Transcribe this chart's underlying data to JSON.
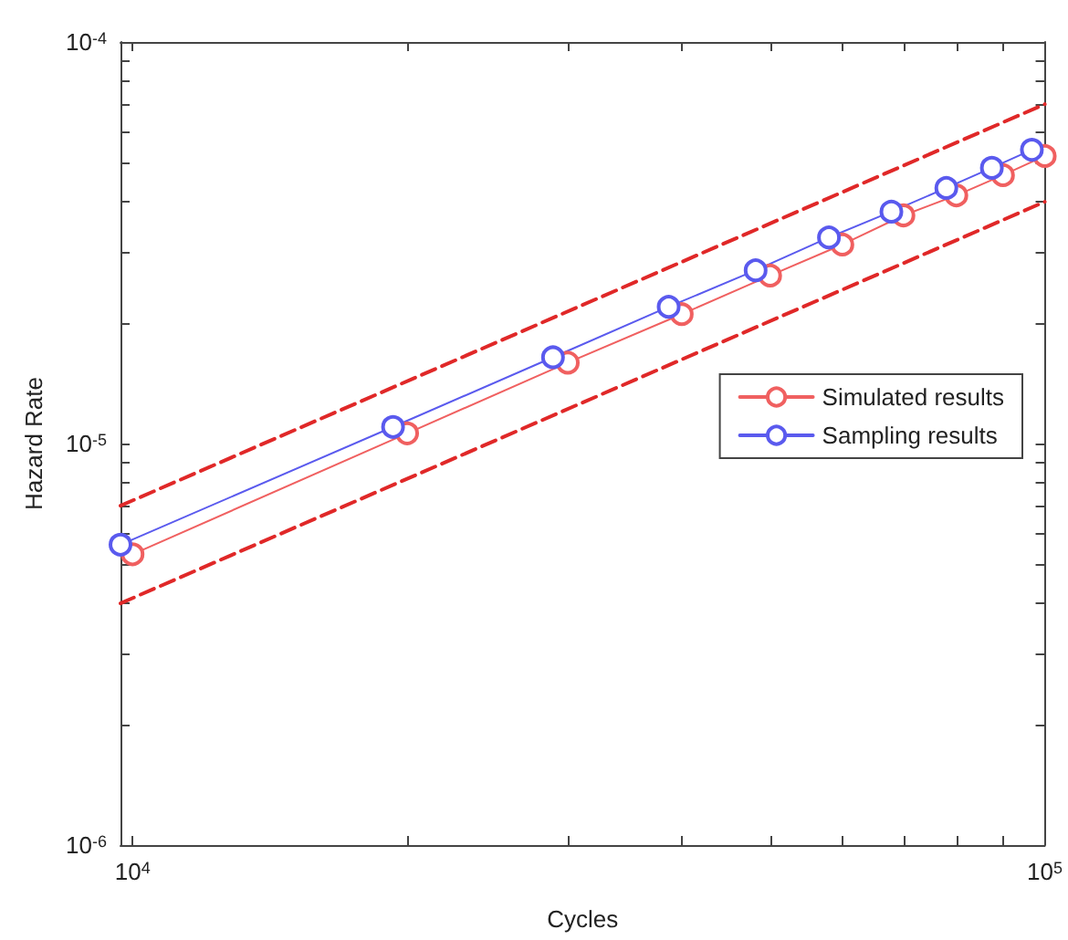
{
  "chart_data": {
    "type": "line",
    "xlabel": "Cycles",
    "ylabel": "Hazard Rate",
    "log": "xy",
    "xlim": [
      9700,
      100000
    ],
    "ylim": [
      1e-06,
      0.0001
    ],
    "xticks": [
      {
        "value": 10000,
        "label": "10$^{4}$"
      },
      {
        "value": 20000,
        "label": null
      },
      {
        "value": 30000,
        "label": null
      },
      {
        "value": 40000,
        "label": null
      },
      {
        "value": 50000,
        "label": null
      },
      {
        "value": 60000,
        "label": null
      },
      {
        "value": 70000,
        "label": null
      },
      {
        "value": 80000,
        "label": null
      },
      {
        "value": 90000,
        "label": null
      },
      {
        "value": 100000,
        "label": "10$^{5}$"
      }
    ],
    "yticks": [
      {
        "value": 1e-06,
        "label": "10$^{-6}$"
      },
      {
        "value": 2e-06,
        "label": null
      },
      {
        "value": 3e-06,
        "label": null
      },
      {
        "value": 4e-06,
        "label": null
      },
      {
        "value": 5e-06,
        "label": null
      },
      {
        "value": 6e-06,
        "label": null
      },
      {
        "value": 7e-06,
        "label": null
      },
      {
        "value": 8e-06,
        "label": null
      },
      {
        "value": 9e-06,
        "label": null
      },
      {
        "value": 1e-05,
        "label": "10$^{-5}$"
      },
      {
        "value": 2e-05,
        "label": null
      },
      {
        "value": 3e-05,
        "label": null
      },
      {
        "value": 4e-05,
        "label": null
      },
      {
        "value": 5e-05,
        "label": null
      },
      {
        "value": 6e-05,
        "label": null
      },
      {
        "value": 7e-05,
        "label": null
      },
      {
        "value": 8e-05,
        "label": null
      },
      {
        "value": 9e-05,
        "label": null
      },
      {
        "value": 0.0001,
        "label": "10$^{-4}$"
      }
    ],
    "grid": false,
    "legend": "right",
    "marker": "circle",
    "line_style": "solid",
    "series": [
      {
        "name": "Simulated results",
        "color": "#f06060",
        "x": [
          10000,
          20000,
          30000,
          40000,
          50000,
          60000,
          70000,
          80000,
          90000,
          100000
        ],
        "values": [
          5.3e-06,
          1.06e-05,
          1.59e-05,
          2.1e-05,
          2.62e-05,
          3.13e-05,
          3.7e-05,
          4.15e-05,
          4.66e-05,
          5.2e-05
        ]
      },
      {
        "name": "Sampling results",
        "color": "#5a5aee",
        "x": [
          9700,
          19300,
          28900,
          38700,
          48200,
          58000,
          67900,
          78000,
          87500,
          96800
        ],
        "values": [
          5.6e-06,
          1.1e-05,
          1.64e-05,
          2.19e-05,
          2.7e-05,
          3.26e-05,
          3.78e-05,
          4.33e-05,
          4.86e-05,
          5.39e-05
        ]
      },
      {
        "color": "#e02828",
        "marker": "none",
        "line_style": "dashed",
        "x": [
          9700,
          100000
        ],
        "values": [
          7e-06,
          7e-05
        ]
      },
      {
        "color": "#e02828",
        "marker": "none",
        "line_style": "dashed",
        "x": [
          9700,
          100000
        ],
        "values": [
          4e-06,
          4e-05
        ]
      }
    ]
  }
}
